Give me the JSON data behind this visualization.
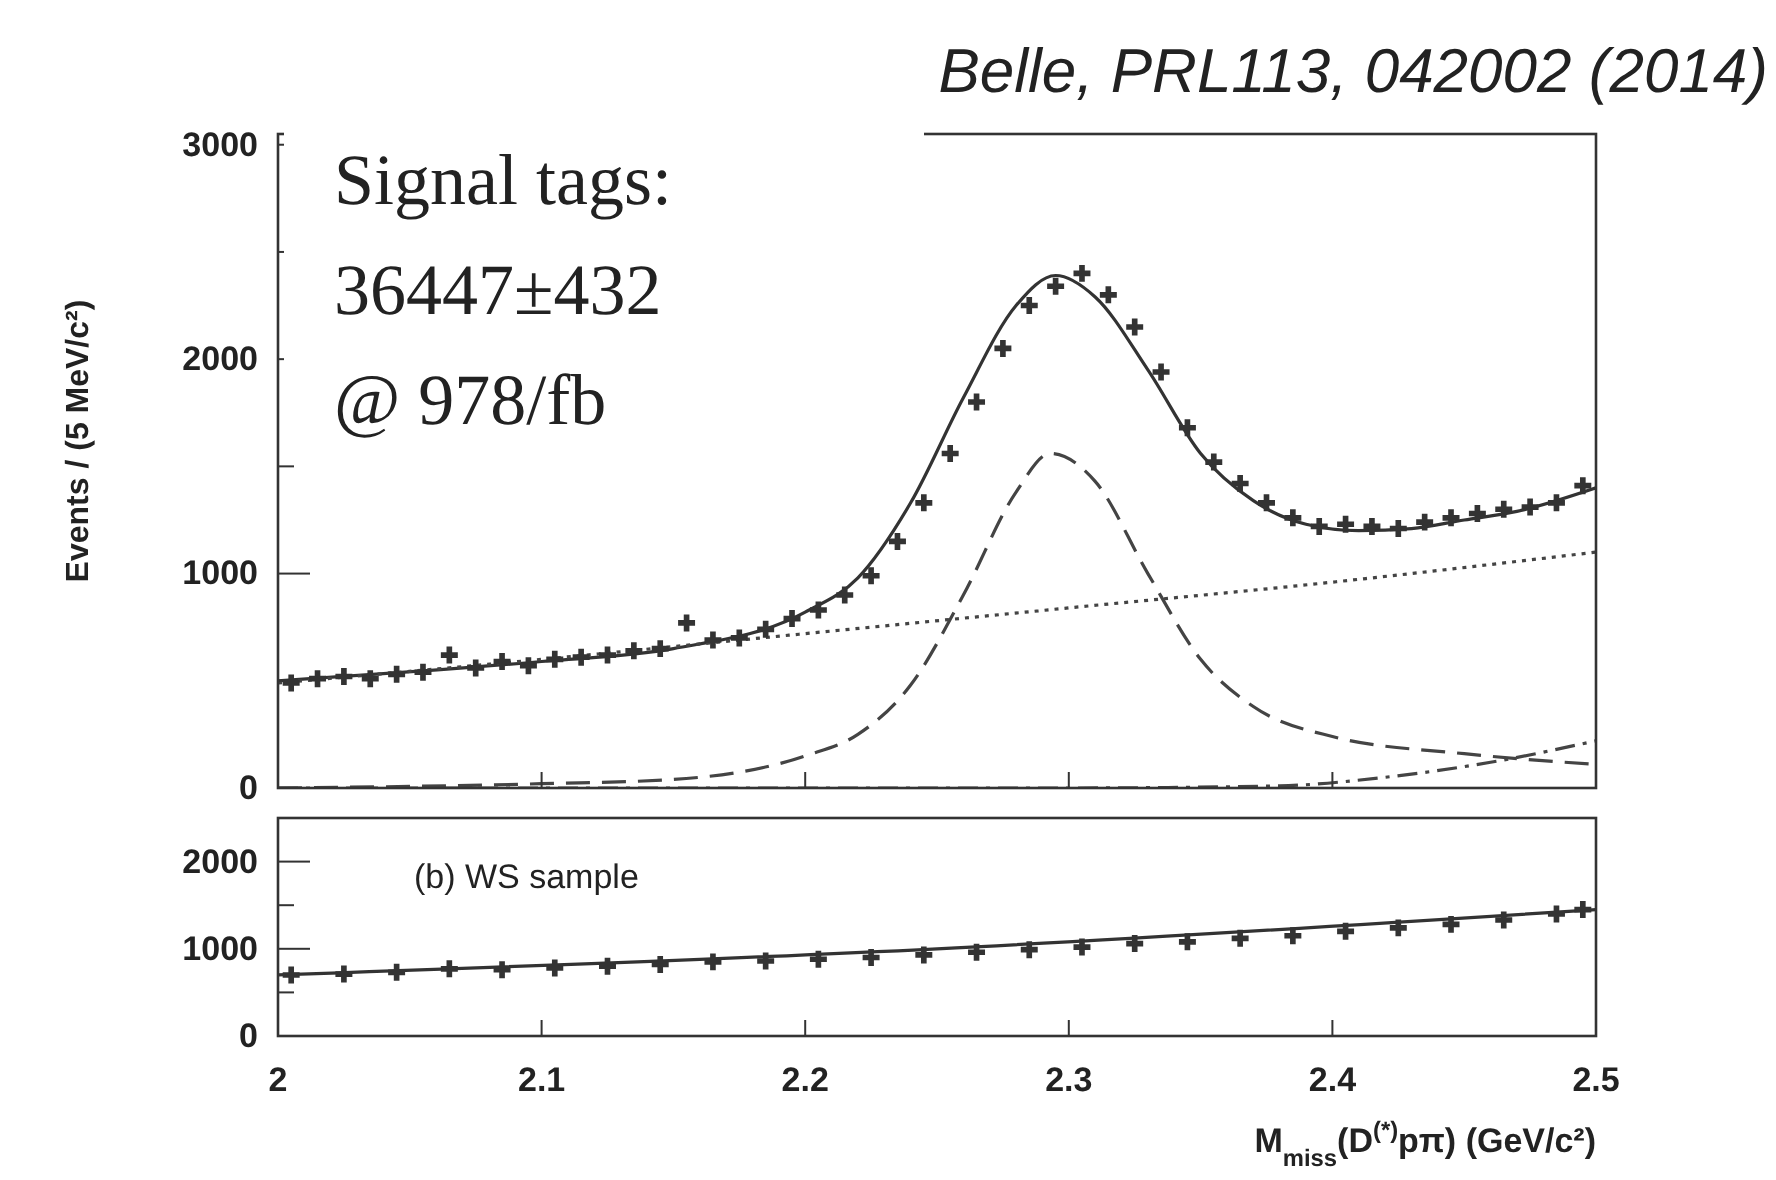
{
  "chart_data": [
    {
      "type": "scatter",
      "title": "Belle, PRL113, 042002 (2014)",
      "ylabel": "Events / (5 MeV/c²)",
      "annotations": [
        "Signal tags:\n36447±432\n@ 978/fb"
      ],
      "xlim": [
        2,
        2.5
      ],
      "xticks": [
        2,
        2.1,
        2.2,
        2.3,
        2.4,
        2.5
      ],
      "ylim": [
        0,
        3050
      ],
      "yticks": [
        0,
        {
          "value": 500,
          "label": null
        },
        1000,
        {
          "value": 1500,
          "label": null
        },
        2000,
        {
          "value": 2500,
          "label": null
        },
        3000
      ],
      "tick_labels": "y",
      "grid": false,
      "series": [
        {
          "marker": "cross",
          "color": "#333333",
          "x": [
            2.005,
            2.015,
            2.025,
            2.035,
            2.045,
            2.055,
            2.065,
            2.075,
            2.085,
            2.095,
            2.105,
            2.115,
            2.125,
            2.135,
            2.145,
            2.155,
            2.165,
            2.175,
            2.185,
            2.195,
            2.205,
            2.215,
            2.225,
            2.235,
            2.245,
            2.255,
            2.265,
            2.275,
            2.285,
            2.295,
            2.305,
            2.315,
            2.325,
            2.335,
            2.345,
            2.355,
            2.365,
            2.375,
            2.385,
            2.395,
            2.405,
            2.415,
            2.425,
            2.435,
            2.445,
            2.455,
            2.465,
            2.475,
            2.485,
            2.495
          ],
          "values": [
            490,
            510,
            520,
            510,
            530,
            540,
            620,
            560,
            590,
            570,
            600,
            610,
            620,
            640,
            650,
            770,
            690,
            700,
            740,
            790,
            830,
            900,
            990,
            1150,
            1330,
            1560,
            1800,
            2050,
            2250,
            2340,
            2400,
            2300,
            2150,
            1940,
            1680,
            1520,
            1420,
            1330,
            1260,
            1220,
            1230,
            1220,
            1210,
            1240,
            1260,
            1280,
            1300,
            1310,
            1330,
            1410
          ]
        },
        {
          "type": "line",
          "line_style": "solid",
          "color": "#333333",
          "x": [
            2,
            2.1,
            2.15,
            2.2,
            2.22,
            2.24,
            2.26,
            2.28,
            2.295,
            2.31,
            2.33,
            2.35,
            2.37,
            2.39,
            2.41,
            2.43,
            2.45,
            2.47,
            2.5
          ],
          "values": [
            500,
            590,
            650,
            820,
            980,
            1330,
            1820,
            2250,
            2390,
            2290,
            1950,
            1560,
            1340,
            1230,
            1200,
            1210,
            1250,
            1290,
            1400
          ]
        },
        {
          "type": "line",
          "line_style": "dashed",
          "color": "#444444",
          "x": [
            2,
            2.1,
            2.15,
            2.2,
            2.22,
            2.24,
            2.26,
            2.28,
            2.293,
            2.31,
            2.33,
            2.35,
            2.37,
            2.4,
            2.45,
            2.5
          ],
          "values": [
            0,
            20,
            40,
            150,
            250,
            480,
            900,
            1380,
            1560,
            1430,
            1000,
            600,
            380,
            240,
            160,
            110
          ]
        },
        {
          "type": "line",
          "line_style": "dotted",
          "color": "#444444",
          "x": [
            2,
            2.1,
            2.2,
            2.3,
            2.4,
            2.5
          ],
          "values": [
            490,
            600,
            720,
            840,
            960,
            1100
          ]
        },
        {
          "type": "line",
          "line_style": "dashdot",
          "color": "#444444",
          "x": [
            2,
            2.3,
            2.38,
            2.42,
            2.46,
            2.5
          ],
          "values": [
            0,
            0,
            10,
            50,
            120,
            220
          ]
        }
      ]
    },
    {
      "type": "scatter",
      "xlabel": "M$_{miss}$(D$^{(*)}$pπ) (GeV/c²)",
      "annotations": [
        "(b) WS sample"
      ],
      "xlim": [
        2,
        2.5
      ],
      "xticks": [
        2,
        2.1,
        2.2,
        2.3,
        2.4,
        2.5
      ],
      "ylim": [
        0,
        2500
      ],
      "yticks": [
        0,
        {
          "value": 500,
          "label": null
        },
        1000,
        {
          "value": 1500,
          "label": null
        },
        2000
      ],
      "grid": false,
      "series": [
        {
          "marker": "cross",
          "color": "#333333",
          "x": [
            2.005,
            2.025,
            2.045,
            2.065,
            2.085,
            2.105,
            2.125,
            2.145,
            2.165,
            2.185,
            2.205,
            2.225,
            2.245,
            2.265,
            2.285,
            2.305,
            2.325,
            2.345,
            2.365,
            2.385,
            2.405,
            2.425,
            2.445,
            2.465,
            2.485,
            2.495
          ],
          "values": [
            700,
            710,
            730,
            770,
            760,
            780,
            800,
            820,
            850,
            860,
            880,
            900,
            930,
            960,
            990,
            1020,
            1060,
            1080,
            1120,
            1150,
            1200,
            1240,
            1280,
            1330,
            1400,
            1450
          ]
        },
        {
          "type": "line",
          "line_style": "solid",
          "color": "#333333",
          "x": [
            2,
            2.25,
            2.5
          ],
          "values": [
            700,
            1000,
            1450
          ]
        }
      ]
    }
  ]
}
